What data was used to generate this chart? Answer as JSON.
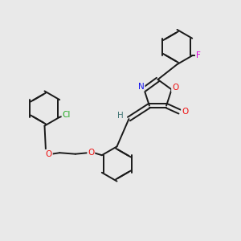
{
  "background_color": "#e9e9e9",
  "bond_color": "#1a1a1a",
  "bond_width": 1.4,
  "atom_colors": {
    "O": "#ee1111",
    "N": "#1111ee",
    "Cl": "#22aa22",
    "F": "#dd00dd",
    "H": "#447777",
    "C": "#1a1a1a"
  },
  "figsize": [
    3.0,
    3.0
  ],
  "dpi": 100
}
